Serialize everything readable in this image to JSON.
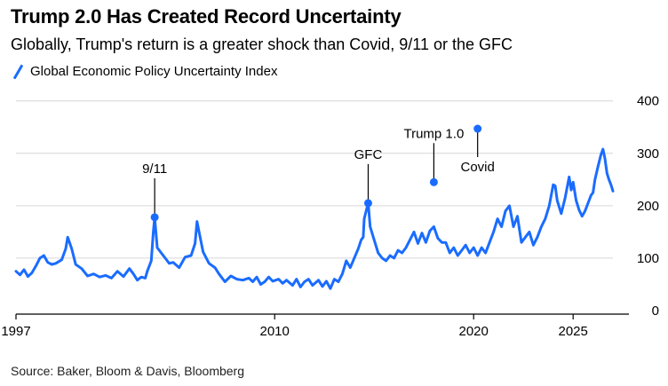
{
  "chart_data": {
    "type": "line",
    "title": "Trump 2.0 Has Created Record Uncertainty",
    "subtitle": "Globally, Trump's return is a greater shock than Covid, 9/11 or the GFC",
    "source": "Source: Baker, Bloom & Davis, Bloomberg",
    "xlim": [
      1997,
      2027
    ],
    "ylim": [
      0,
      430
    ],
    "x_ticks": [
      {
        "value": 1997,
        "label": "1997"
      },
      {
        "value": 2010,
        "label": "2010"
      },
      {
        "value": 2020,
        "label": "2020"
      },
      {
        "value": 2025,
        "label": "2025"
      }
    ],
    "y_ticks": [
      {
        "value": 0,
        "label": "0"
      },
      {
        "value": 100,
        "label": "100"
      },
      {
        "value": 200,
        "label": "200"
      },
      {
        "value": 300,
        "label": "300"
      },
      {
        "value": 400,
        "label": "400"
      }
    ],
    "grid": "horizontal",
    "legend_position": "top-left",
    "color": "#1a6cff",
    "series": [
      {
        "name": "Global Economic Policy Uncertainty Index",
        "points": [
          [
            1997.0,
            75
          ],
          [
            1997.2,
            68
          ],
          [
            1997.4,
            78
          ],
          [
            1997.6,
            65
          ],
          [
            1997.8,
            72
          ],
          [
            1998.0,
            85
          ],
          [
            1998.2,
            100
          ],
          [
            1998.4,
            105
          ],
          [
            1998.6,
            92
          ],
          [
            1998.8,
            88
          ],
          [
            1999.0,
            90
          ],
          [
            1999.3,
            97
          ],
          [
            1999.5,
            118
          ],
          [
            1999.6,
            140
          ],
          [
            1999.8,
            118
          ],
          [
            2000.0,
            88
          ],
          [
            2000.3,
            80
          ],
          [
            2000.6,
            66
          ],
          [
            2000.9,
            70
          ],
          [
            2001.2,
            64
          ],
          [
            2001.5,
            67
          ],
          [
            2001.8,
            62
          ],
          [
            2002.1,
            75
          ],
          [
            2002.4,
            65
          ],
          [
            2002.7,
            80
          ],
          [
            2002.9,
            70
          ],
          [
            2003.1,
            58
          ],
          [
            2003.3,
            64
          ],
          [
            2003.5,
            62
          ],
          [
            2003.6,
            75
          ],
          [
            2003.8,
            95
          ],
          [
            2003.9,
            150
          ],
          [
            2003.97,
            178
          ],
          [
            2004.1,
            120
          ],
          [
            2004.3,
            110
          ],
          [
            2004.5,
            100
          ],
          [
            2004.7,
            90
          ],
          [
            2004.9,
            92
          ],
          [
            2005.2,
            82
          ],
          [
            2005.5,
            102
          ],
          [
            2005.8,
            105
          ],
          [
            2006.0,
            128
          ],
          [
            2006.1,
            170
          ],
          [
            2006.2,
            150
          ],
          [
            2006.4,
            112
          ],
          [
            2006.7,
            90
          ],
          [
            2007.0,
            82
          ],
          [
            2007.2,
            70
          ],
          [
            2007.5,
            55
          ],
          [
            2007.8,
            66
          ],
          [
            2008.1,
            60
          ],
          [
            2008.4,
            58
          ],
          [
            2008.7,
            62
          ],
          [
            2008.9,
            55
          ],
          [
            2009.1,
            64
          ],
          [
            2009.3,
            50
          ],
          [
            2009.5,
            55
          ],
          [
            2009.7,
            64
          ],
          [
            2009.9,
            56
          ],
          [
            2010.2,
            60
          ],
          [
            2010.4,
            52
          ],
          [
            2010.6,
            58
          ],
          [
            2010.9,
            48
          ],
          [
            2011.1,
            60
          ],
          [
            2011.3,
            45
          ],
          [
            2011.5,
            55
          ],
          [
            2011.7,
            60
          ],
          [
            2011.9,
            48
          ],
          [
            2012.2,
            58
          ],
          [
            2012.4,
            46
          ],
          [
            2012.6,
            56
          ],
          [
            2012.8,
            42
          ],
          [
            2013.0,
            60
          ],
          [
            2013.2,
            55
          ],
          [
            2013.4,
            70
          ],
          [
            2013.6,
            95
          ],
          [
            2013.8,
            82
          ],
          [
            2014.0,
            100
          ],
          [
            2014.2,
            118
          ],
          [
            2014.35,
            135
          ],
          [
            2014.45,
            140
          ],
          [
            2014.5,
            175
          ],
          [
            2014.6,
            190
          ],
          [
            2014.7,
            205
          ],
          [
            2014.8,
            160
          ],
          [
            2015.0,
            135
          ],
          [
            2015.2,
            110
          ],
          [
            2015.4,
            100
          ],
          [
            2015.6,
            95
          ],
          [
            2015.8,
            105
          ],
          [
            2016.0,
            100
          ],
          [
            2016.2,
            115
          ],
          [
            2016.4,
            110
          ],
          [
            2016.6,
            120
          ],
          [
            2016.8,
            135
          ],
          [
            2017.0,
            150
          ],
          [
            2017.2,
            128
          ],
          [
            2017.4,
            148
          ],
          [
            2017.6,
            130
          ],
          [
            2017.8,
            152
          ],
          [
            2018.0,
            160
          ],
          [
            2018.2,
            138
          ],
          [
            2018.4,
            130
          ],
          [
            2018.6,
            130
          ],
          [
            2018.8,
            110
          ],
          [
            2019.0,
            120
          ],
          [
            2019.2,
            105
          ],
          [
            2019.4,
            115
          ],
          [
            2019.6,
            125
          ],
          [
            2019.8,
            110
          ],
          [
            2020.0,
            120
          ],
          [
            2020.2,
            105
          ],
          [
            2020.4,
            120
          ],
          [
            2020.6,
            110
          ],
          [
            2020.8,
            130
          ],
          [
            2021.0,
            150
          ],
          [
            2021.2,
            175
          ],
          [
            2021.4,
            160
          ],
          [
            2021.6,
            190
          ],
          [
            2021.8,
            200
          ],
          [
            2022.0,
            160
          ],
          [
            2022.2,
            180
          ],
          [
            2022.4,
            130
          ],
          [
            2022.6,
            140
          ],
          [
            2022.8,
            150
          ],
          [
            2023.0,
            125
          ],
          [
            2023.2,
            140
          ],
          [
            2023.4,
            160
          ],
          [
            2023.6,
            175
          ],
          [
            2023.8,
            200
          ],
          [
            2024.0,
            240
          ],
          [
            2024.1,
            238
          ],
          [
            2024.2,
            210
          ],
          [
            2024.4,
            185
          ],
          [
            2024.5,
            200
          ],
          [
            2024.6,
            215
          ],
          [
            2024.8,
            255
          ],
          [
            2024.9,
            230
          ],
          [
            2025.0,
            245
          ],
          [
            2025.15,
            210
          ],
          [
            2025.3,
            192
          ],
          [
            2025.45,
            180
          ],
          [
            2025.6,
            190
          ],
          [
            2025.75,
            205
          ],
          [
            2025.9,
            220
          ],
          [
            2026.0,
            225
          ],
          [
            2026.1,
            250
          ],
          [
            2026.25,
            275
          ],
          [
            2026.4,
            298
          ],
          [
            2026.5,
            308
          ],
          [
            2026.6,
            290
          ],
          [
            2026.7,
            262
          ],
          [
            2026.8,
            250
          ],
          [
            2026.9,
            240
          ],
          [
            2027.0,
            228
          ]
        ]
      }
    ],
    "annotations": [
      {
        "label": "9/11",
        "x": 2003.97,
        "y": 178,
        "label_side": "above"
      },
      {
        "label": "GFC",
        "x": 2014.7,
        "y": 205,
        "label_side": "above"
      },
      {
        "label": "Trump 1.0",
        "x": 2018.0,
        "y": 245,
        "label_side": "above"
      },
      {
        "label": "Covid",
        "x": 2020.2,
        "y": 347,
        "label_side": "below"
      }
    ]
  }
}
